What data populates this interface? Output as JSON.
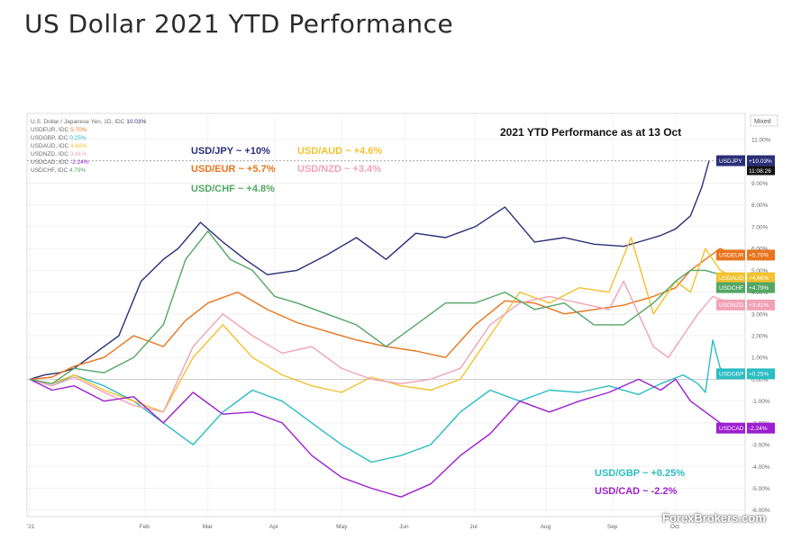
{
  "page_title": "US Dollar 2021 YTD Performance",
  "watermark": "ForexBrokers.com",
  "chart_data": {
    "type": "line",
    "title": "2021 YTD Performance as at 13 Oct",
    "scale_mode": "Mixed",
    "y_unit": "%",
    "ylim": [
      -6.3,
      12.2
    ],
    "y_ticks": [
      "11.00%",
      "10.00%",
      "9.00%",
      "8.00%",
      "7.00%",
      "6.00%",
      "5.00%",
      "4.00%",
      "3.00%",
      "2.00%",
      "1.00%",
      "0.00%",
      "-1.00%",
      "-2.00%",
      "-3.00%",
      "-4.00%",
      "-5.00%",
      "-6.00%"
    ],
    "x_ticks": [
      "'21",
      "Feb",
      "Mar",
      "Apr",
      "May",
      "Jun",
      "Jul",
      "Aug",
      "Sep",
      "Oct"
    ],
    "legend_header": {
      "text": "U.S. Dollar / Japanese Yen, 1D, IDC",
      "value": "10.03%"
    },
    "legend": [
      {
        "text": "USDEUR, IDC",
        "value": "5.70%"
      },
      {
        "text": "USDGBP, IDC",
        "value": "0.25%"
      },
      {
        "text": "USDAUD, IDC",
        "value": "4.66%"
      },
      {
        "text": "USDNZD, IDC",
        "value": "3.41%"
      },
      {
        "text": "USDCAD, IDC",
        "value": "-2.24%"
      },
      {
        "text": "USDCHF, IDC",
        "value": "4.79%"
      }
    ],
    "annotations": [
      {
        "text": "USD/JPY ~ +10%",
        "series": "USDJPY"
      },
      {
        "text": "USD/AUD ~ +4.6%",
        "series": "USDAUD"
      },
      {
        "text": "USD/EUR ~ +5.7%",
        "series": "USDEUR"
      },
      {
        "text": "USD/NZD ~ +3.4%",
        "series": "USDNZD"
      },
      {
        "text": "USD/CHF ~ +4.8%",
        "series": "USDCHF"
      },
      {
        "text": "USD/GBP ~ +0.25%",
        "series": "USDGBP"
      },
      {
        "text": "USD/CAD ~ -2.2%",
        "series": "USDCAD"
      }
    ],
    "crosshair_time": "11:08:26",
    "series": [
      {
        "name": "USDJPY",
        "color": "#2a2f78",
        "end_label": "+10.03%",
        "x": [
          0,
          0.2,
          0.4,
          0.6,
          0.8,
          1.0,
          1.2,
          1.5,
          1.8,
          2.0,
          2.3,
          2.6,
          2.9,
          3.2,
          3.6,
          4.0,
          4.4,
          4.8,
          5.2,
          5.6,
          6.0,
          6.4,
          6.8,
          7.2,
          7.6,
          8.0,
          8.3,
          8.5,
          8.7,
          8.9,
          9.05,
          9.15
        ],
        "values": [
          0,
          0.2,
          0.3,
          0.5,
          1.0,
          1.5,
          2.0,
          4.5,
          5.5,
          6.0,
          7.2,
          6.3,
          5.5,
          4.8,
          5.0,
          5.7,
          6.5,
          5.5,
          6.7,
          6.5,
          7.0,
          7.9,
          6.3,
          6.5,
          6.2,
          6.1,
          6.4,
          6.6,
          6.9,
          7.5,
          8.8,
          10.03
        ]
      },
      {
        "name": "USDEUR",
        "color": "#e8741c",
        "end_label": "+5.70%",
        "x": [
          0,
          0.3,
          0.6,
          1.0,
          1.4,
          1.8,
          2.1,
          2.4,
          2.8,
          3.2,
          3.6,
          4.0,
          4.4,
          4.8,
          5.2,
          5.6,
          6.0,
          6.4,
          6.8,
          7.2,
          7.6,
          8.0,
          8.4,
          8.7,
          8.9,
          9.1,
          9.3,
          9.5
        ],
        "values": [
          0,
          0.1,
          0.6,
          1.0,
          2.0,
          1.5,
          2.7,
          3.5,
          4.0,
          3.2,
          2.6,
          2.2,
          1.8,
          1.5,
          1.3,
          1.0,
          2.5,
          3.6,
          3.5,
          3.0,
          3.2,
          3.4,
          3.8,
          4.2,
          5.0,
          5.5,
          6.0,
          5.7
        ]
      },
      {
        "name": "USDGBP",
        "color": "#2bbdc2",
        "end_label": "+0.25%",
        "x": [
          0,
          0.3,
          0.6,
          1.0,
          1.4,
          1.8,
          2.2,
          2.6,
          3.0,
          3.4,
          3.8,
          4.2,
          4.6,
          5.0,
          5.4,
          5.8,
          6.2,
          6.6,
          7.0,
          7.4,
          7.8,
          8.2,
          8.5,
          8.8,
          9.0,
          9.1,
          9.2,
          9.3,
          9.5
        ],
        "values": [
          0,
          -0.3,
          0.2,
          -0.3,
          -1.0,
          -2.0,
          -3.0,
          -1.5,
          -0.5,
          -1.0,
          -2.0,
          -3.0,
          -3.8,
          -3.5,
          -3.0,
          -1.5,
          -0.5,
          -1.0,
          -0.5,
          -0.6,
          -0.3,
          -0.7,
          -0.2,
          0.2,
          -0.2,
          -0.6,
          1.8,
          0.5,
          0.25
        ]
      },
      {
        "name": "USDAUD",
        "color": "#f2c12e",
        "end_label": "+4.66%",
        "x": [
          0,
          0.3,
          0.6,
          1.0,
          1.4,
          1.8,
          2.2,
          2.6,
          3.0,
          3.4,
          3.8,
          4.2,
          4.6,
          5.0,
          5.4,
          5.8,
          6.2,
          6.6,
          7.0,
          7.4,
          7.8,
          8.1,
          8.4,
          8.7,
          8.9,
          9.1,
          9.3,
          9.5
        ],
        "values": [
          0,
          -0.2,
          0.2,
          -0.5,
          -1.0,
          -1.5,
          1.0,
          2.5,
          1.0,
          0.2,
          -0.3,
          -0.6,
          0.1,
          -0.3,
          -0.5,
          0.0,
          2.0,
          4.0,
          3.5,
          4.2,
          4.0,
          6.5,
          3.0,
          4.5,
          4.0,
          6.0,
          5.0,
          4.66
        ]
      },
      {
        "name": "USDNZD",
        "color": "#f2a2b5",
        "end_label": "+3.41%",
        "x": [
          0,
          0.3,
          0.6,
          1.0,
          1.4,
          1.8,
          2.2,
          2.6,
          3.0,
          3.4,
          3.8,
          4.2,
          4.6,
          5.0,
          5.4,
          5.8,
          6.2,
          6.6,
          7.0,
          7.4,
          7.8,
          8.0,
          8.2,
          8.4,
          8.6,
          8.8,
          9.0,
          9.2,
          9.5
        ],
        "values": [
          0,
          -0.3,
          0.1,
          -0.6,
          -1.2,
          -1.5,
          1.5,
          3.0,
          2.0,
          1.2,
          1.5,
          0.5,
          0.0,
          -0.2,
          0.0,
          0.5,
          2.5,
          3.5,
          3.8,
          3.5,
          3.2,
          4.5,
          3.0,
          1.5,
          1.0,
          2.0,
          3.0,
          3.8,
          3.41
        ]
      },
      {
        "name": "USDCAD",
        "color": "#9d1fd1",
        "end_label": "-2.24%",
        "x": [
          0,
          0.3,
          0.6,
          1.0,
          1.4,
          1.8,
          2.2,
          2.6,
          3.0,
          3.4,
          3.8,
          4.2,
          4.6,
          5.0,
          5.4,
          5.8,
          6.2,
          6.6,
          7.0,
          7.4,
          7.8,
          8.2,
          8.5,
          8.7,
          8.9,
          9.1,
          9.3,
          9.5
        ],
        "values": [
          0,
          -0.5,
          -0.3,
          -1.0,
          -0.8,
          -2.0,
          -0.6,
          -1.6,
          -1.5,
          -2.0,
          -3.5,
          -4.5,
          -5.0,
          -5.4,
          -4.8,
          -3.5,
          -2.5,
          -1.0,
          -1.5,
          -1.0,
          -0.6,
          0.0,
          -0.5,
          0.0,
          -1.0,
          -1.5,
          -2.0,
          -2.24
        ]
      },
      {
        "name": "USDCHF",
        "color": "#54a665",
        "end_label": "+4.79%",
        "x": [
          0,
          0.3,
          0.6,
          1.0,
          1.4,
          1.8,
          2.1,
          2.4,
          2.7,
          3.0,
          3.3,
          3.6,
          4.0,
          4.4,
          4.8,
          5.2,
          5.6,
          6.0,
          6.4,
          6.8,
          7.2,
          7.6,
          8.0,
          8.4,
          8.7,
          8.9,
          9.1,
          9.3,
          9.5
        ],
        "values": [
          0,
          -0.2,
          0.5,
          0.3,
          1.0,
          2.5,
          5.5,
          6.8,
          5.5,
          5.0,
          3.8,
          3.5,
          3.0,
          2.5,
          1.5,
          2.5,
          3.5,
          3.5,
          4.0,
          3.2,
          3.5,
          2.5,
          2.5,
          3.5,
          4.5,
          5.0,
          5.0,
          4.8,
          4.79
        ]
      }
    ]
  }
}
